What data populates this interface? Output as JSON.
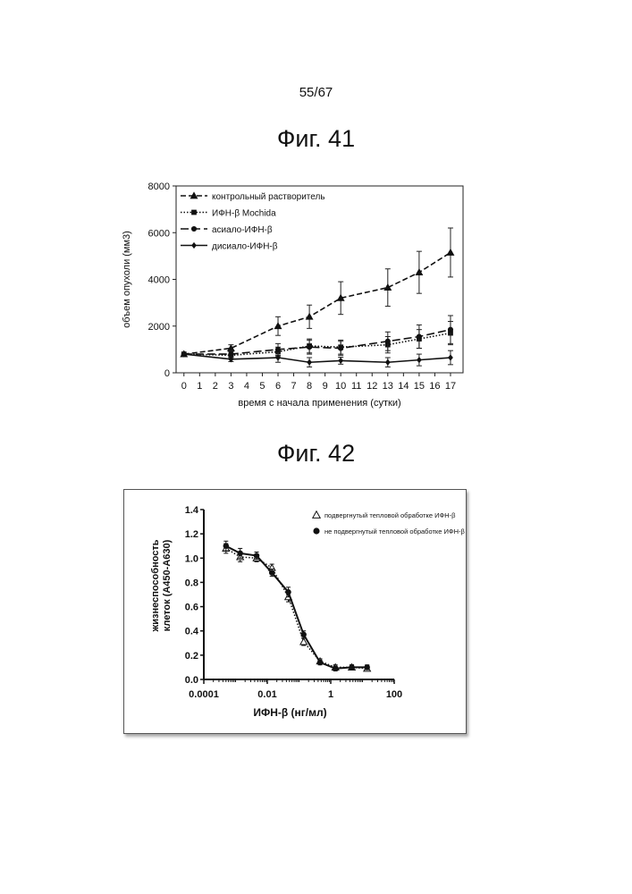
{
  "page": {
    "number": "55/67"
  },
  "chart_data": [
    {
      "id": "fig41",
      "figure_label": "Фиг. 41",
      "type": "line",
      "xlabel": "время с начала применения (сутки)",
      "ylabel": "объем опухоли (мм3)",
      "x_ticks": [
        "0",
        "1",
        "2",
        "3",
        "4",
        "5",
        "6",
        "7",
        "8",
        "9",
        "10",
        "11",
        "12",
        "13",
        "14",
        "15",
        "16",
        "17"
      ],
      "y_ticks": [
        "0",
        "2000",
        "4000",
        "6000",
        "8000"
      ],
      "xlim": [
        -0.5,
        17.8
      ],
      "ylim": [
        0,
        8000
      ],
      "legend_position": "top-left",
      "series": [
        {
          "name": "контрольный растворитель",
          "marker": "triangle",
          "linestyle": "dashed",
          "x": [
            0,
            3,
            6,
            8,
            10,
            13,
            15,
            17
          ],
          "y": [
            800,
            1050,
            2000,
            2400,
            3200,
            3650,
            4300,
            5150
          ],
          "err": [
            0,
            150,
            400,
            500,
            700,
            800,
            900,
            1050
          ]
        },
        {
          "name": "ИФН-β Mochida",
          "marker": "square",
          "linestyle": "dotted",
          "x": [
            0,
            3,
            6,
            8,
            10,
            13,
            15,
            17
          ],
          "y": [
            800,
            750,
            900,
            1150,
            1100,
            1200,
            1450,
            1700
          ],
          "err": [
            0,
            150,
            200,
            300,
            300,
            350,
            400,
            500
          ]
        },
        {
          "name": "асиало-ИФН-β",
          "marker": "circle",
          "linestyle": "longdash",
          "x": [
            0,
            3,
            6,
            8,
            10,
            13,
            15,
            17
          ],
          "y": [
            800,
            800,
            1000,
            1100,
            1050,
            1350,
            1550,
            1850
          ],
          "err": [
            0,
            150,
            250,
            300,
            300,
            400,
            500,
            600
          ]
        },
        {
          "name": "дисиало-ИФН-β",
          "marker": "diamond",
          "linestyle": "solid",
          "x": [
            0,
            3,
            6,
            8,
            10,
            13,
            15,
            17
          ],
          "y": [
            800,
            580,
            650,
            450,
            520,
            450,
            550,
            650
          ],
          "err": [
            0,
            100,
            200,
            200,
            150,
            200,
            250,
            300
          ]
        }
      ]
    },
    {
      "id": "fig42",
      "figure_label": "Фиг. 42",
      "type": "line",
      "xscale": "log",
      "xlabel": "ИФН-β (нг/мл)",
      "ylabel": "жизнеспособность клеток (A450-A630)",
      "ylabel_lines": [
        "жизнеспособность",
        "клеток (A450-A630)"
      ],
      "x_ticks": [
        "0.0001",
        "0.01",
        "1",
        "100"
      ],
      "y_ticks": [
        "0.0",
        "0.2",
        "0.4",
        "0.6",
        "0.8",
        "1.0",
        "1.2",
        "1.4"
      ],
      "xlim": [
        0.0001,
        100
      ],
      "ylim": [
        0,
        1.4
      ],
      "legend_position": "top-right",
      "series": [
        {
          "name": "подвергнутый тепловой обработке ИФН-β",
          "marker": "open-triangle",
          "linestyle": "dotted",
          "x": [
            0.0005,
            0.0014,
            0.0046,
            0.014,
            0.046,
            0.14,
            0.46,
            1.4,
            4.6,
            14
          ],
          "y": [
            1.08,
            1.01,
            1.0,
            0.92,
            0.68,
            0.31,
            0.15,
            0.1,
            0.1,
            0.09
          ],
          "err": [
            0.04,
            0.04,
            0.03,
            0.03,
            0.04,
            0.03,
            0.02,
            0.02,
            0.02,
            0.02
          ]
        },
        {
          "name": "не подвергнутый тепловой обработке ИФН-β",
          "marker": "filled-circle",
          "linestyle": "solid",
          "x": [
            0.0005,
            0.0014,
            0.0046,
            0.014,
            0.046,
            0.14,
            0.46,
            1.4,
            4.6,
            14
          ],
          "y": [
            1.1,
            1.04,
            1.02,
            0.88,
            0.72,
            0.37,
            0.14,
            0.09,
            0.1,
            0.1
          ],
          "err": [
            0.04,
            0.04,
            0.03,
            0.03,
            0.04,
            0.03,
            0.02,
            0.02,
            0.02,
            0.02
          ]
        }
      ]
    }
  ]
}
